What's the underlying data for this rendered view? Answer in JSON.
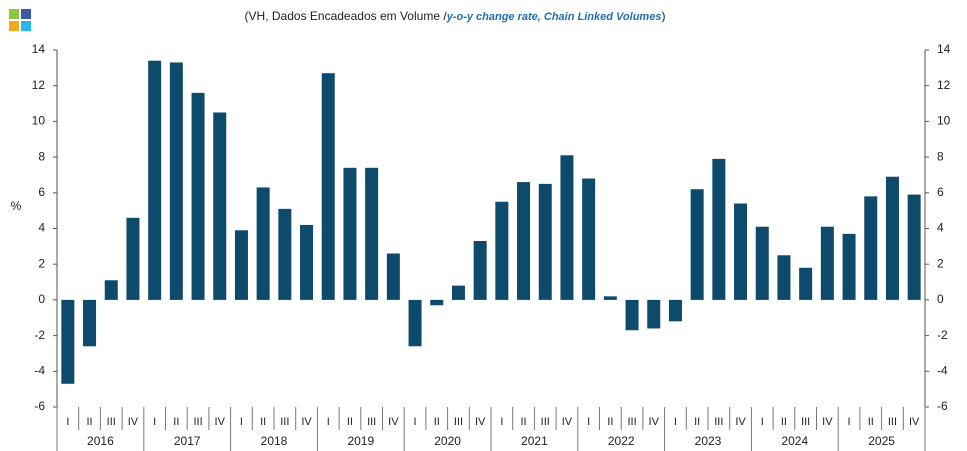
{
  "chart_data": {
    "type": "bar",
    "title_parts": [
      "(VH, Dados Encadeados em Volume",
      "/",
      "y-o-y change rate, Chain Linked Volumes",
      ")"
    ],
    "ylabel": "%",
    "categories": [
      "I",
      "II",
      "III",
      "IV",
      "I",
      "II",
      "III",
      "IV",
      "I",
      "II",
      "III",
      "IV",
      "I",
      "II",
      "III",
      "IV",
      "I",
      "II",
      "III",
      "IV",
      "I",
      "II",
      "III",
      "IV",
      "I",
      "II",
      "III",
      "IV",
      "I",
      "II",
      "III",
      "IV",
      "I",
      "II",
      "III",
      "IV",
      "I",
      "II",
      "III",
      "IV"
    ],
    "groups": [
      "2016",
      "2017",
      "2018",
      "2019",
      "2020",
      "2021",
      "2022",
      "2023",
      "2024",
      "2025"
    ],
    "values": [
      -4.7,
      -2.6,
      1.1,
      4.6,
      13.4,
      13.3,
      11.6,
      10.5,
      3.9,
      6.3,
      5.1,
      4.2,
      12.7,
      7.4,
      7.4,
      2.6,
      -2.6,
      -0.3,
      0.8,
      3.3,
      5.5,
      6.6,
      6.5,
      8.1,
      6.8,
      0.2,
      -1.7,
      -1.6,
      -1.2,
      6.2,
      7.9,
      5.4,
      4.1,
      2.5,
      1.8,
      4.1,
      3.7,
      5.8,
      6.9,
      5.9
    ],
    "color": "#0d4a6b",
    "ylim": [
      -6,
      14
    ],
    "yticks": [
      -6,
      -4,
      -2,
      0,
      2,
      4,
      6,
      8,
      10,
      12,
      14
    ],
    "y2lim": [
      -6,
      14
    ],
    "y2ticks": [
      -6,
      -4,
      -2,
      0,
      2,
      4,
      6,
      8,
      10,
      12,
      14
    ]
  }
}
